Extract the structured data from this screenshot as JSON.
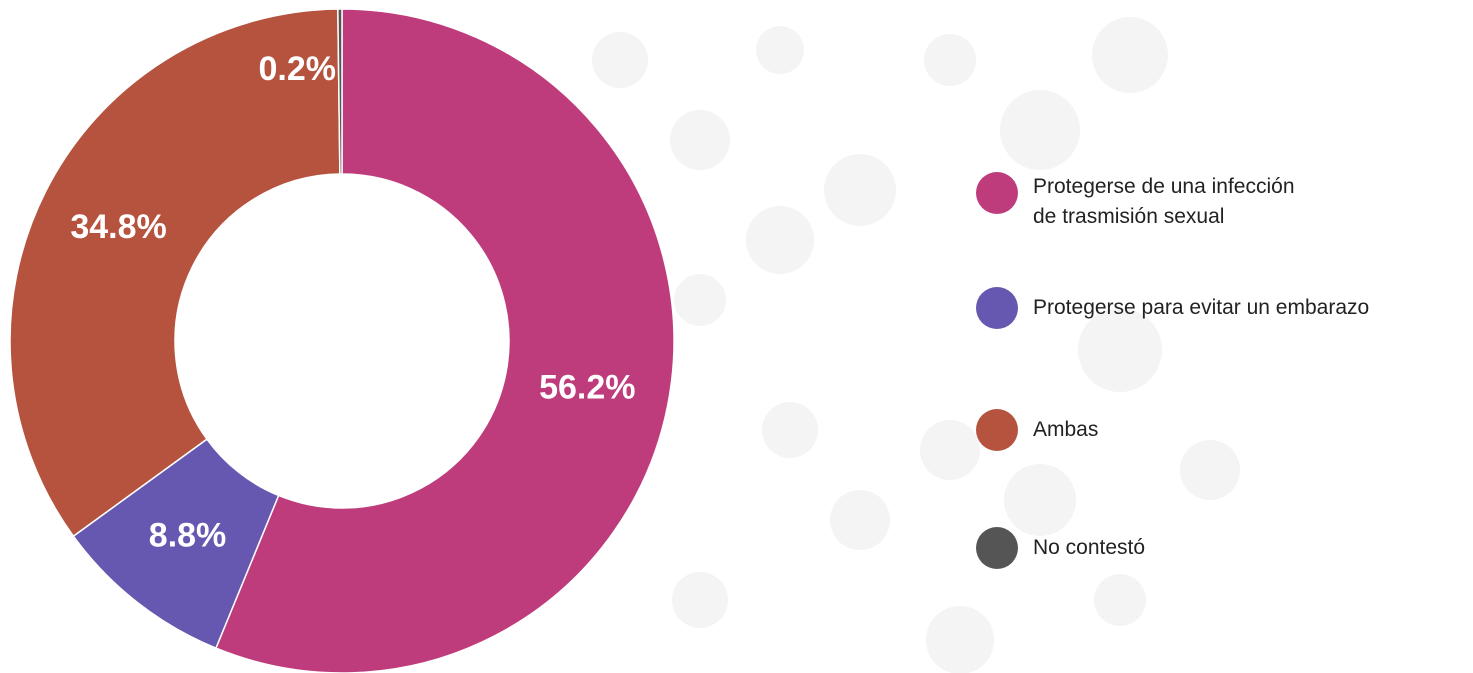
{
  "chart_data": {
    "type": "pie",
    "donut": true,
    "categories": [
      "Protegerse de una infección\nde trasmisión sexual",
      "Protegerse para evitar un embarazo",
      "Ambas",
      "No contestó"
    ],
    "values": [
      56.2,
      8.8,
      34.8,
      0.2
    ],
    "value_labels": [
      "56.2%",
      "8.8%",
      "34.8%",
      "0.2%"
    ],
    "colors": [
      "#be3c7c",
      "#6657b0",
      "#b5533f",
      "#555555"
    ],
    "legend": "right"
  }
}
